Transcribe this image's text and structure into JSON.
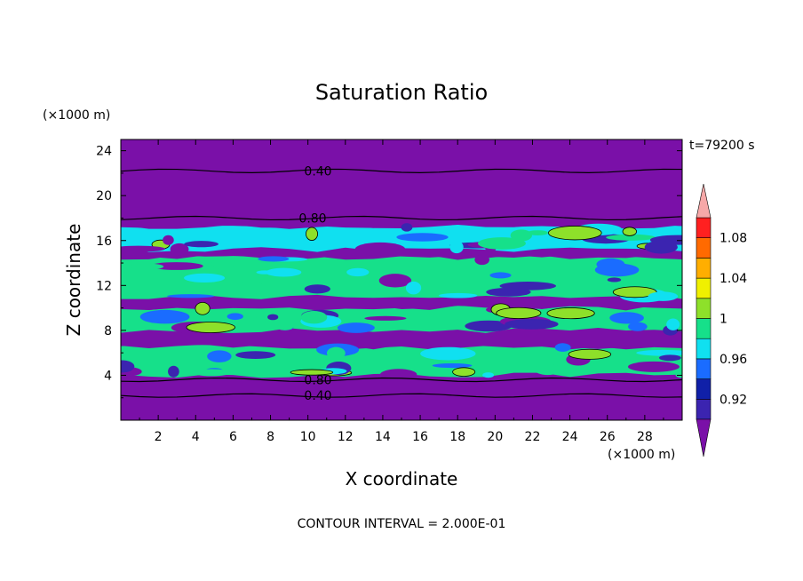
{
  "chart_data": {
    "type": "heatmap",
    "title": "Saturation Ratio",
    "xlabel": "X coordinate",
    "ylabel": "Z coordinate",
    "x_units": "(×1000 m)",
    "y_units": "(×1000 m)",
    "xlim": [
      0,
      30
    ],
    "ylim": [
      0,
      25
    ],
    "x_ticks": [
      "2",
      "4",
      "6",
      "8",
      "10",
      "12",
      "14",
      "16",
      "18",
      "20",
      "22",
      "24",
      "26",
      "28"
    ],
    "y_ticks": [
      "4",
      "8",
      "12",
      "16",
      "20",
      "24"
    ],
    "time_label": "t=79200 s",
    "footer": "CONTOUR INTERVAL = 2.000E-01",
    "contour_labels": [
      "0.40",
      "0.80",
      "0.80",
      "0.40"
    ],
    "colorbar": {
      "levels": [
        0.9,
        0.92,
        0.94,
        0.96,
        0.98,
        1.0,
        1.02,
        1.04,
        1.06,
        1.08,
        1.1
      ],
      "tick_labels": [
        "0.92",
        "0.96",
        "1",
        "1.04",
        "1.08"
      ],
      "colors": [
        "#7a10a8",
        "#3b24b0",
        "#1020a8",
        "#1a6cff",
        "#10e0f0",
        "#16e08a",
        "#8ee02a",
        "#f0f000",
        "#ffae00",
        "#ff6a00",
        "#ff2020",
        "#f6a8a8"
      ],
      "extend": "both"
    },
    "bands": [
      {
        "z0": 0.0,
        "z1": 2.2,
        "value": "<0.90",
        "color": "#7a10a8"
      },
      {
        "z0": 2.2,
        "z1": 4.0,
        "value": "<0.90",
        "color": "#7a10a8"
      },
      {
        "z0": 4.0,
        "z1": 6.5,
        "value": "0.96-1.02",
        "color": "#16e08a"
      },
      {
        "z0": 6.5,
        "z1": 8.0,
        "value": "<0.90",
        "color": "#7a10a8"
      },
      {
        "z0": 8.0,
        "z1": 10.0,
        "value": "0.98-1.02",
        "color": "#16e08a"
      },
      {
        "z0": 10.0,
        "z1": 11.0,
        "value": "<0.90",
        "color": "#7a10a8"
      },
      {
        "z0": 11.0,
        "z1": 14.5,
        "value": "0.96-1.02",
        "color": "#16e08a"
      },
      {
        "z0": 14.5,
        "z1": 15.2,
        "value": "<0.90",
        "color": "#7a10a8"
      },
      {
        "z0": 15.2,
        "z1": 17.2,
        "value": "0.96-1.00",
        "color": "#10e0f0"
      },
      {
        "z0": 17.2,
        "z1": 25.0,
        "value": "<0.90",
        "color": "#7a10a8"
      }
    ],
    "contours": [
      {
        "level": 0.4,
        "z": 2.2
      },
      {
        "level": 0.8,
        "z": 3.6
      },
      {
        "level": 0.8,
        "z": 18.0
      },
      {
        "level": 0.4,
        "z": 22.2
      }
    ]
  }
}
